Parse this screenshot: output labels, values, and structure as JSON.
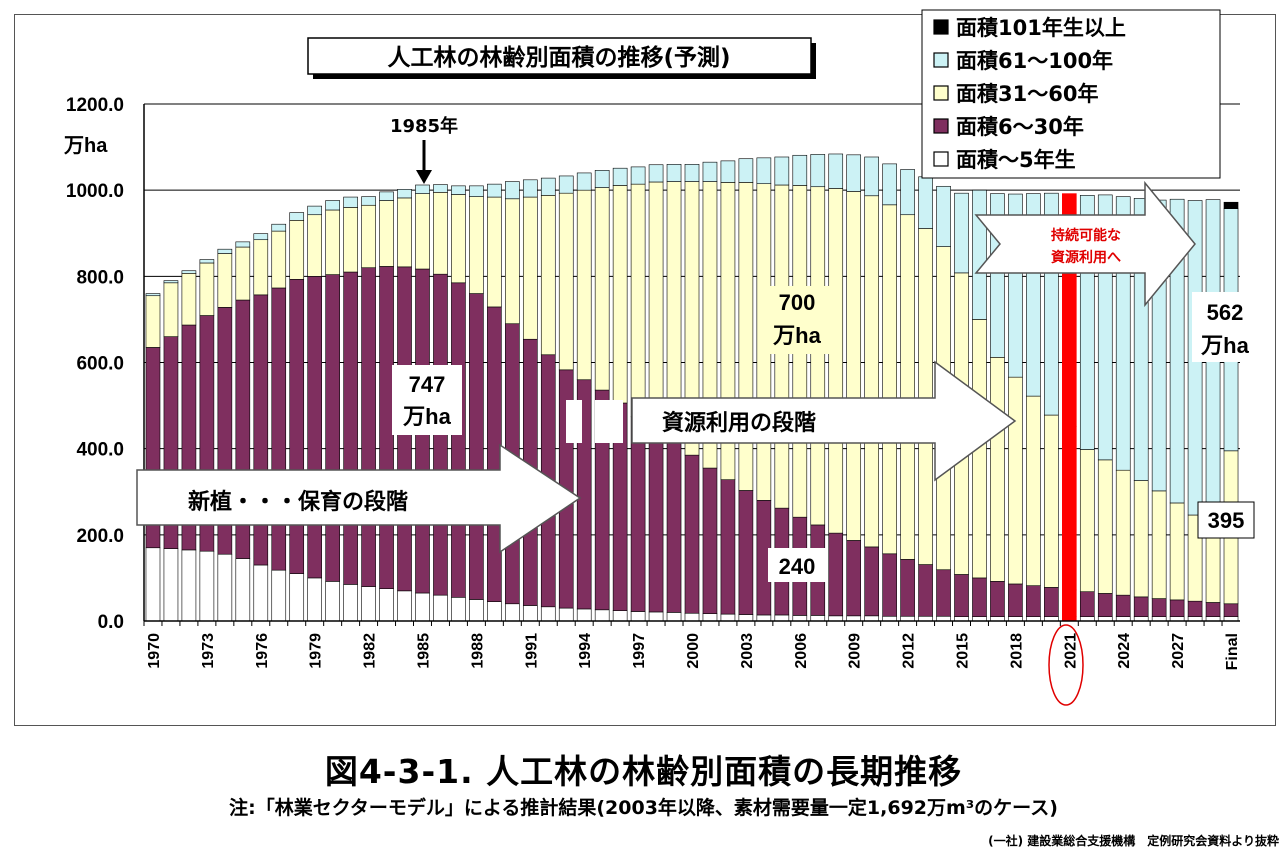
{
  "chart_data": {
    "type": "bar",
    "stacked": true,
    "title": "人工林の林齢別面積の推移(予測)",
    "ylabel": "万ha",
    "ylim": [
      0,
      1200
    ],
    "y_ticks": [
      "0.0",
      "200.0",
      "400.0",
      "600.0",
      "800.0",
      "1000.0",
      "1200.0"
    ],
    "grid": true,
    "legend_position": "top-right",
    "categories": [
      "1970",
      "1971",
      "1972",
      "1973",
      "1974",
      "1975",
      "1976",
      "1977",
      "1978",
      "1979",
      "1980",
      "1981",
      "1982",
      "1983",
      "1984",
      "1985",
      "1986",
      "1987",
      "1988",
      "1989",
      "1990",
      "1991",
      "1992",
      "1993",
      "1994",
      "1995",
      "1996",
      "1997",
      "1998",
      "1999",
      "2000",
      "2001",
      "2002",
      "2003",
      "2004",
      "2005",
      "2006",
      "2007",
      "2008",
      "2009",
      "2010",
      "2011",
      "2012",
      "2013",
      "2014",
      "2015",
      "2016",
      "2017",
      "2018",
      "2019",
      "2020",
      "2021",
      "2022",
      "2023",
      "2024",
      "2025",
      "2026",
      "2027",
      "2028",
      "2029",
      "Final"
    ],
    "x_tick_labels": [
      "1970",
      "1973",
      "1976",
      "1979",
      "1982",
      "1985",
      "1988",
      "1991",
      "1994",
      "1997",
      "2000",
      "2003",
      "2006",
      "2009",
      "2012",
      "2015",
      "2018",
      "2021",
      "2024",
      "2027",
      "Final"
    ],
    "series": [
      {
        "name": "面積～5年生",
        "color": "#ffffff",
        "values": [
          170,
          168,
          165,
          162,
          155,
          145,
          130,
          118,
          110,
          100,
          92,
          85,
          80,
          75,
          70,
          65,
          60,
          55,
          50,
          45,
          40,
          36,
          33,
          30,
          28,
          26,
          24,
          22,
          21,
          20,
          18,
          17,
          16,
          15,
          14,
          14,
          13,
          13,
          12,
          12,
          12,
          11,
          11,
          11,
          11,
          10,
          10,
          10,
          10,
          10,
          10,
          10,
          10,
          10,
          10,
          10,
          10,
          10,
          10,
          10,
          10
        ]
      },
      {
        "name": "面積6～30年",
        "color": "#7f2f5f",
        "values": [
          465,
          492,
          522,
          547,
          573,
          600,
          627,
          655,
          683,
          700,
          712,
          725,
          740,
          748,
          752,
          752,
          745,
          730,
          710,
          684,
          650,
          618,
          585,
          553,
          532,
          510,
          482,
          452,
          423,
          395,
          367,
          338,
          312,
          288,
          266,
          248,
          228,
          210,
          192,
          175,
          160,
          145,
          132,
          120,
          108,
          98,
          90,
          82,
          76,
          72,
          68,
          62,
          58,
          54,
          50,
          46,
          42,
          39,
          36,
          33,
          30
        ]
      },
      {
        "name": "面積31～60年",
        "color": "#ffffcc",
        "values": [
          120,
          125,
          120,
          122,
          125,
          123,
          128,
          132,
          137,
          143,
          150,
          150,
          145,
          153,
          160,
          175,
          190,
          205,
          225,
          255,
          290,
          330,
          370,
          410,
          440,
          470,
          505,
          540,
          575,
          605,
          635,
          665,
          690,
          715,
          735,
          750,
          770,
          785,
          800,
          810,
          815,
          810,
          800,
          780,
          750,
          700,
          600,
          520,
          480,
          440,
          400,
          380,
          330,
          310,
          290,
          270,
          250,
          225,
          200,
          175,
          355
        ]
      },
      {
        "name": "面積61～100年",
        "color": "#ccf2f5",
        "values": [
          5,
          5,
          6,
          8,
          10,
          12,
          14,
          16,
          18,
          20,
          22,
          24,
          20,
          20,
          20,
          20,
          18,
          20,
          25,
          30,
          40,
          40,
          40,
          40,
          40,
          40,
          40,
          40,
          40,
          40,
          40,
          45,
          50,
          55,
          60,
          65,
          70,
          75,
          80,
          85,
          90,
          95,
          105,
          120,
          140,
          185,
          300,
          380,
          425,
          470,
          515,
          540,
          590,
          615,
          635,
          655,
          675,
          705,
          730,
          760,
          562
        ]
      },
      {
        "name": "面積101年生以上",
        "color": "#000000",
        "values": [
          0,
          0,
          0,
          0,
          0,
          0,
          0,
          0,
          0,
          0,
          0,
          0,
          0,
          0,
          0,
          0,
          0,
          0,
          0,
          0,
          0,
          0,
          0,
          0,
          0,
          0,
          0,
          0,
          0,
          0,
          0,
          0,
          0,
          0,
          0,
          0,
          0,
          0,
          0,
          0,
          0,
          0,
          0,
          0,
          0,
          0,
          0,
          0,
          0,
          0,
          0,
          0,
          0,
          0,
          0,
          0,
          0,
          0,
          0,
          0,
          15
        ]
      }
    ],
    "highlight_category": "2021",
    "annotations": {
      "year_1985": "1985年",
      "val_747": "747",
      "unit_747": "万ha",
      "val_700": "700",
      "unit_700": "万ha",
      "val_240": "240",
      "val_562": "562",
      "unit_562": "万ha",
      "val_395": "395",
      "phase_1": "新植・・・保育の段階",
      "phase_2": "資源利用の段階",
      "phase_3_line1": "持続可能な",
      "phase_3_line2": "資源利用へ"
    }
  },
  "caption": {
    "title": "図4-3-1. 人工林の林齢別面積の長期推移",
    "note": "注:「林業セクターモデル」による推計結果(2003年以降、素材需要量一定1,692万m³のケース)",
    "source": "(一社) 建設業総合支援機構　定例研究会資料より抜粋"
  }
}
